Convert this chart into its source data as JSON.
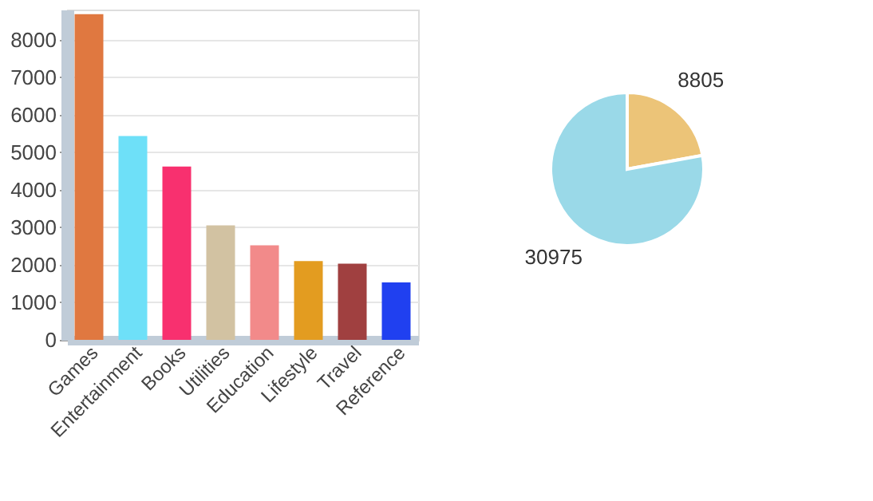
{
  "chart_data": [
    {
      "type": "bar",
      "categories": [
        "Games",
        "Entertainment",
        "Books",
        "Utilities",
        "Education",
        "Lifestyle",
        "Travel",
        "Reference"
      ],
      "values": [
        8680,
        5430,
        4620,
        3050,
        2520,
        2100,
        2030,
        1530
      ],
      "colors": [
        "#e07840",
        "#6ee0f8",
        "#f8306f",
        "#d2c2a2",
        "#f28a8a",
        "#e39c20",
        "#a04040",
        "#2040f0"
      ],
      "ylim": [
        0,
        8800
      ],
      "yticks": [
        0,
        1000,
        2000,
        3000,
        4000,
        5000,
        6000,
        7000,
        8000
      ],
      "grid": "y"
    },
    {
      "type": "pie",
      "categories": [
        null,
        null
      ],
      "values": [
        8805,
        30975
      ],
      "colors": [
        "#ecc478",
        "#9ad9e8"
      ],
      "data_labels": true
    }
  ]
}
